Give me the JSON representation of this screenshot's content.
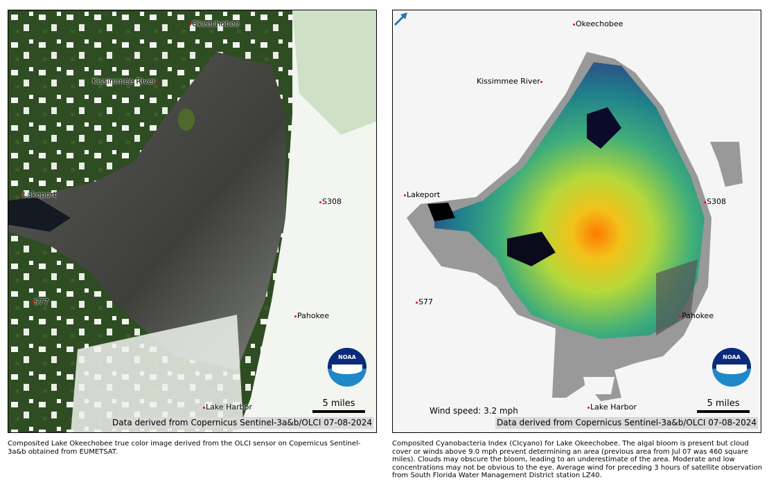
{
  "left_panel": {
    "labels": [
      "Okeechobee",
      "Kissimmee River",
      "Lakeport",
      "S308",
      "S77",
      "Pahokee",
      "Lake Harbor"
    ],
    "scale": "5 miles",
    "credit": "Data derived from Copernicus Sentinel-3a&b/OLCI 07-08-2024",
    "logo": "NOAA",
    "caption": "Composited Lake Okeechobee true color image derived from the OLCI sensor on Copernicus Sentinel-3a&b obtained from EUMETSAT."
  },
  "right_panel": {
    "labels": [
      "Okeechobee",
      "Kissimmee River",
      "Lakeport",
      "S308",
      "S77",
      "Pahokee",
      "Lake Harbor"
    ],
    "scale": "5 miles",
    "wind": "Wind speed: 3.2 mph",
    "credit": "Data derived from Copernicus Sentinel-3a&b/OLCI 07-08-2024",
    "logo": "NOAA",
    "caption": "Composited Cyanobacteria Index (CIcyano) for Lake Okeechobee. The algal bloom is present but cloud cover or winds above 9.0 mph prevent determining an area (previous area from Jul 07 was 460 square miles).  Clouds may obscure the bloom, leading to an underestimate of the area. Moderate and low concentrations may not be obvious to the eye. Average wind for preceding 3 hours of satellite observation from South Florida Water Management District station LZ40."
  },
  "colors": {
    "marker": "#ee0000",
    "wind_arrow": "#1f77b4",
    "bloom_high": "#ff7700",
    "no_data": "#999999"
  }
}
